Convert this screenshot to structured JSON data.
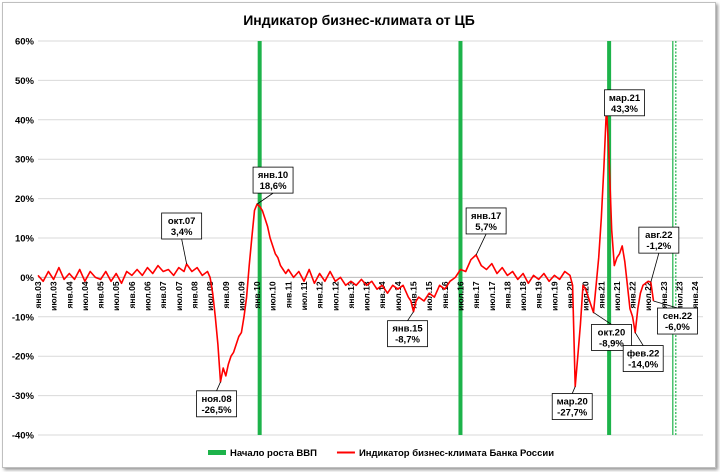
{
  "chart_data": {
    "type": "line",
    "title": "Индикатор бизнес-климата  от ЦБ",
    "ylim": [
      -40,
      60
    ],
    "y_ticks": [
      {
        "value": 60,
        "label": "60%"
      },
      {
        "value": 50,
        "label": "50%"
      },
      {
        "value": 40,
        "label": "40%"
      },
      {
        "value": 30,
        "label": "30%"
      },
      {
        "value": 20,
        "label": "20%"
      },
      {
        "value": 10,
        "label": "10%"
      },
      {
        "value": 0,
        "label": "0%"
      },
      {
        "value": -10,
        "label": "-10%"
      },
      {
        "value": -20,
        "label": "-20%"
      },
      {
        "value": -30,
        "label": "-30%"
      },
      {
        "value": -40,
        "label": "-40%"
      }
    ],
    "x_ticks": [
      "янв.03",
      "июл.03",
      "янв.04",
      "июл.04",
      "янв.05",
      "июл.05",
      "янв.06",
      "июл.06",
      "янв.07",
      "июл.07",
      "янв.08",
      "июл.08",
      "янв.09",
      "июл.09",
      "янв.10",
      "июл.10",
      "янв.11",
      "июл.11",
      "янв.12",
      "июл.12",
      "янв.13",
      "июл.13",
      "янв.14",
      "июл.14",
      "янв.15",
      "июл.15",
      "янв.16",
      "июл.16",
      "янв.17",
      "июл.17",
      "янв.18",
      "июл.18",
      "янв.19",
      "июл.19",
      "янв.20",
      "июл.20",
      "янв.21",
      "июл.21",
      "янв.22",
      "июл.22",
      "янв.23",
      "июл.23",
      "янв.24"
    ],
    "grid": true,
    "legend_position": "bottom",
    "legend": [
      {
        "label": "Начало роста ВВП",
        "color": "#1db34a",
        "kind": "bar"
      },
      {
        "label": "Индикатор бизнес-климата Банка России",
        "color": "#ff0000",
        "kind": "line"
      }
    ],
    "gdp_growth_start_dates": [
      "2010-02",
      "2016-07",
      "2021-04"
    ],
    "gdp_growth_start_dates_dashed": [
      "2023-05"
    ],
    "series": [
      {
        "name": "Индикатор бизнес-климата Банка России",
        "color": "#ff0000",
        "points": [
          [
            "2003-01",
            0.5
          ],
          [
            "2003-03",
            -1.0
          ],
          [
            "2003-05",
            1.5
          ],
          [
            "2003-07",
            -0.5
          ],
          [
            "2003-09",
            2.5
          ],
          [
            "2003-11",
            -0.5
          ],
          [
            "2004-01",
            1.0
          ],
          [
            "2004-03",
            -0.5
          ],
          [
            "2004-05",
            2.0
          ],
          [
            "2004-07",
            -1.0
          ],
          [
            "2004-09",
            1.5
          ],
          [
            "2004-11",
            0.0
          ],
          [
            "2005-01",
            -0.5
          ],
          [
            "2005-03",
            1.5
          ],
          [
            "2005-05",
            -1.0
          ],
          [
            "2005-07",
            1.0
          ],
          [
            "2005-09",
            -1.5
          ],
          [
            "2005-11",
            1.5
          ],
          [
            "2006-01",
            0.5
          ],
          [
            "2006-03",
            2.0
          ],
          [
            "2006-05",
            0.5
          ],
          [
            "2006-07",
            2.5
          ],
          [
            "2006-09",
            1.0
          ],
          [
            "2006-11",
            3.0
          ],
          [
            "2007-01",
            1.5
          ],
          [
            "2007-03",
            2.0
          ],
          [
            "2007-05",
            0.5
          ],
          [
            "2007-07",
            2.5
          ],
          [
            "2007-09",
            1.5
          ],
          [
            "2007-10",
            3.4
          ],
          [
            "2007-12",
            1.5
          ],
          [
            "2008-02",
            2.5
          ],
          [
            "2008-04",
            0.5
          ],
          [
            "2008-06",
            1.5
          ],
          [
            "2008-07",
            0.0
          ],
          [
            "2008-08",
            -4.0
          ],
          [
            "2008-09",
            -10.0
          ],
          [
            "2008-10",
            -17.0
          ],
          [
            "2008-11",
            -26.5
          ],
          [
            "2008-12",
            -23.0
          ],
          [
            "2009-01",
            -25.0
          ],
          [
            "2009-02",
            -22.0
          ],
          [
            "2009-03",
            -20.0
          ],
          [
            "2009-04",
            -19.0
          ],
          [
            "2009-05",
            -17.0
          ],
          [
            "2009-06",
            -15.0
          ],
          [
            "2009-07",
            -14.0
          ],
          [
            "2009-08",
            -10.0
          ],
          [
            "2009-09",
            -5.0
          ],
          [
            "2009-10",
            3.0
          ],
          [
            "2009-11",
            10.0
          ],
          [
            "2009-12",
            17.0
          ],
          [
            "2010-01",
            18.6
          ],
          [
            "2010-02",
            18.0
          ],
          [
            "2010-03",
            17.0
          ],
          [
            "2010-04",
            15.0
          ],
          [
            "2010-05",
            13.0
          ],
          [
            "2010-06",
            10.0
          ],
          [
            "2010-07",
            8.0
          ],
          [
            "2010-08",
            6.0
          ],
          [
            "2010-09",
            5.0
          ],
          [
            "2010-10",
            3.0
          ],
          [
            "2010-11",
            2.0
          ],
          [
            "2010-12",
            1.0
          ],
          [
            "2011-01",
            2.0
          ],
          [
            "2011-03",
            0.0
          ],
          [
            "2011-05",
            1.5
          ],
          [
            "2011-07",
            -1.0
          ],
          [
            "2011-09",
            2.0
          ],
          [
            "2011-11",
            -1.5
          ],
          [
            "2012-01",
            1.0
          ],
          [
            "2012-03",
            -1.0
          ],
          [
            "2012-05",
            1.5
          ],
          [
            "2012-07",
            -1.0
          ],
          [
            "2012-09",
            0.0
          ],
          [
            "2012-11",
            -2.0
          ],
          [
            "2013-01",
            -1.0
          ],
          [
            "2013-03",
            -2.0
          ],
          [
            "2013-05",
            -0.5
          ],
          [
            "2013-07",
            -2.0
          ],
          [
            "2013-09",
            -1.0
          ],
          [
            "2013-11",
            -3.0
          ],
          [
            "2014-01",
            -2.0
          ],
          [
            "2014-03",
            -4.0
          ],
          [
            "2014-05",
            -2.0
          ],
          [
            "2014-07",
            -3.0
          ],
          [
            "2014-09",
            -2.0
          ],
          [
            "2014-11",
            -5.0
          ],
          [
            "2014-12",
            -6.0
          ],
          [
            "2015-01",
            -8.7
          ],
          [
            "2015-02",
            -6.0
          ],
          [
            "2015-03",
            -5.0
          ],
          [
            "2015-05",
            -6.0
          ],
          [
            "2015-07",
            -4.0
          ],
          [
            "2015-09",
            -5.0
          ],
          [
            "2015-11",
            -2.0
          ],
          [
            "2016-01",
            -3.0
          ],
          [
            "2016-03",
            -1.0
          ],
          [
            "2016-05",
            0.0
          ],
          [
            "2016-07",
            2.0
          ],
          [
            "2016-09",
            1.5
          ],
          [
            "2016-11",
            4.5
          ],
          [
            "2017-01",
            5.7
          ],
          [
            "2017-03",
            3.0
          ],
          [
            "2017-05",
            2.0
          ],
          [
            "2017-07",
            3.5
          ],
          [
            "2017-09",
            1.0
          ],
          [
            "2017-11",
            2.5
          ],
          [
            "2018-01",
            0.5
          ],
          [
            "2018-03",
            1.5
          ],
          [
            "2018-05",
            -0.5
          ],
          [
            "2018-07",
            1.0
          ],
          [
            "2018-09",
            -1.5
          ],
          [
            "2018-11",
            0.5
          ],
          [
            "2019-01",
            -0.5
          ],
          [
            "2019-03",
            1.0
          ],
          [
            "2019-05",
            -1.0
          ],
          [
            "2019-07",
            0.5
          ],
          [
            "2019-09",
            -0.5
          ],
          [
            "2019-11",
            1.5
          ],
          [
            "2020-01",
            0.5
          ],
          [
            "2020-02",
            -2.0
          ],
          [
            "2020-03",
            -27.7
          ],
          [
            "2020-04",
            -20.0
          ],
          [
            "2020-05",
            -12.0
          ],
          [
            "2020-06",
            -2.0
          ],
          [
            "2020-07",
            -3.0
          ],
          [
            "2020-08",
            -5.0
          ],
          [
            "2020-09",
            -7.0
          ],
          [
            "2020-10",
            -8.9
          ],
          [
            "2020-11",
            -2.0
          ],
          [
            "2020-12",
            5.0
          ],
          [
            "2021-01",
            15.0
          ],
          [
            "2021-02",
            28.0
          ],
          [
            "2021-03",
            43.3
          ],
          [
            "2021-04",
            30.0
          ],
          [
            "2021-05",
            12.0
          ],
          [
            "2021-06",
            3.0
          ],
          [
            "2021-07",
            5.0
          ],
          [
            "2021-08",
            6.0
          ],
          [
            "2021-09",
            8.0
          ],
          [
            "2021-10",
            4.0
          ],
          [
            "2021-11",
            -2.0
          ],
          [
            "2021-12",
            -8.0
          ],
          [
            "2022-01",
            -10.0
          ],
          [
            "2022-02",
            -14.0
          ],
          [
            "2022-03",
            -8.0
          ],
          [
            "2022-04",
            -4.0
          ],
          [
            "2022-05",
            -2.0
          ],
          [
            "2022-06",
            -1.5
          ],
          [
            "2022-07",
            -1.0
          ],
          [
            "2022-08",
            -1.2
          ],
          [
            "2022-09",
            -6.0
          ]
        ]
      }
    ],
    "annotations": [
      {
        "label": "окт.07",
        "value": "3,4%",
        "x": "2007-10",
        "y": 3.4
      },
      {
        "label": "ноя.08",
        "value": "-26,5%",
        "x": "2008-11",
        "y": -26.5
      },
      {
        "label": "янв.10",
        "value": "18,6%",
        "x": "2010-01",
        "y": 18.6
      },
      {
        "label": "янв.15",
        "value": "-8,7%",
        "x": "2015-01",
        "y": -8.7
      },
      {
        "label": "янв.17",
        "value": "5,7%",
        "x": "2017-01",
        "y": 5.7
      },
      {
        "label": "мар.20",
        "value": "-27,7%",
        "x": "2020-03",
        "y": -27.7
      },
      {
        "label": "окт.20",
        "value": "-8,9%",
        "x": "2020-10",
        "y": -8.9
      },
      {
        "label": "мар.21",
        "value": "43,3%",
        "x": "2021-03",
        "y": 43.3
      },
      {
        "label": "фев.22",
        "value": "-14,0%",
        "x": "2022-02",
        "y": -14.0
      },
      {
        "label": "авг.22",
        "value": "-1,2%",
        "x": "2022-08",
        "y": -1.2
      },
      {
        "label": "сен.22",
        "value": "-6,0%",
        "x": "2022-09",
        "y": -6.0
      }
    ]
  }
}
